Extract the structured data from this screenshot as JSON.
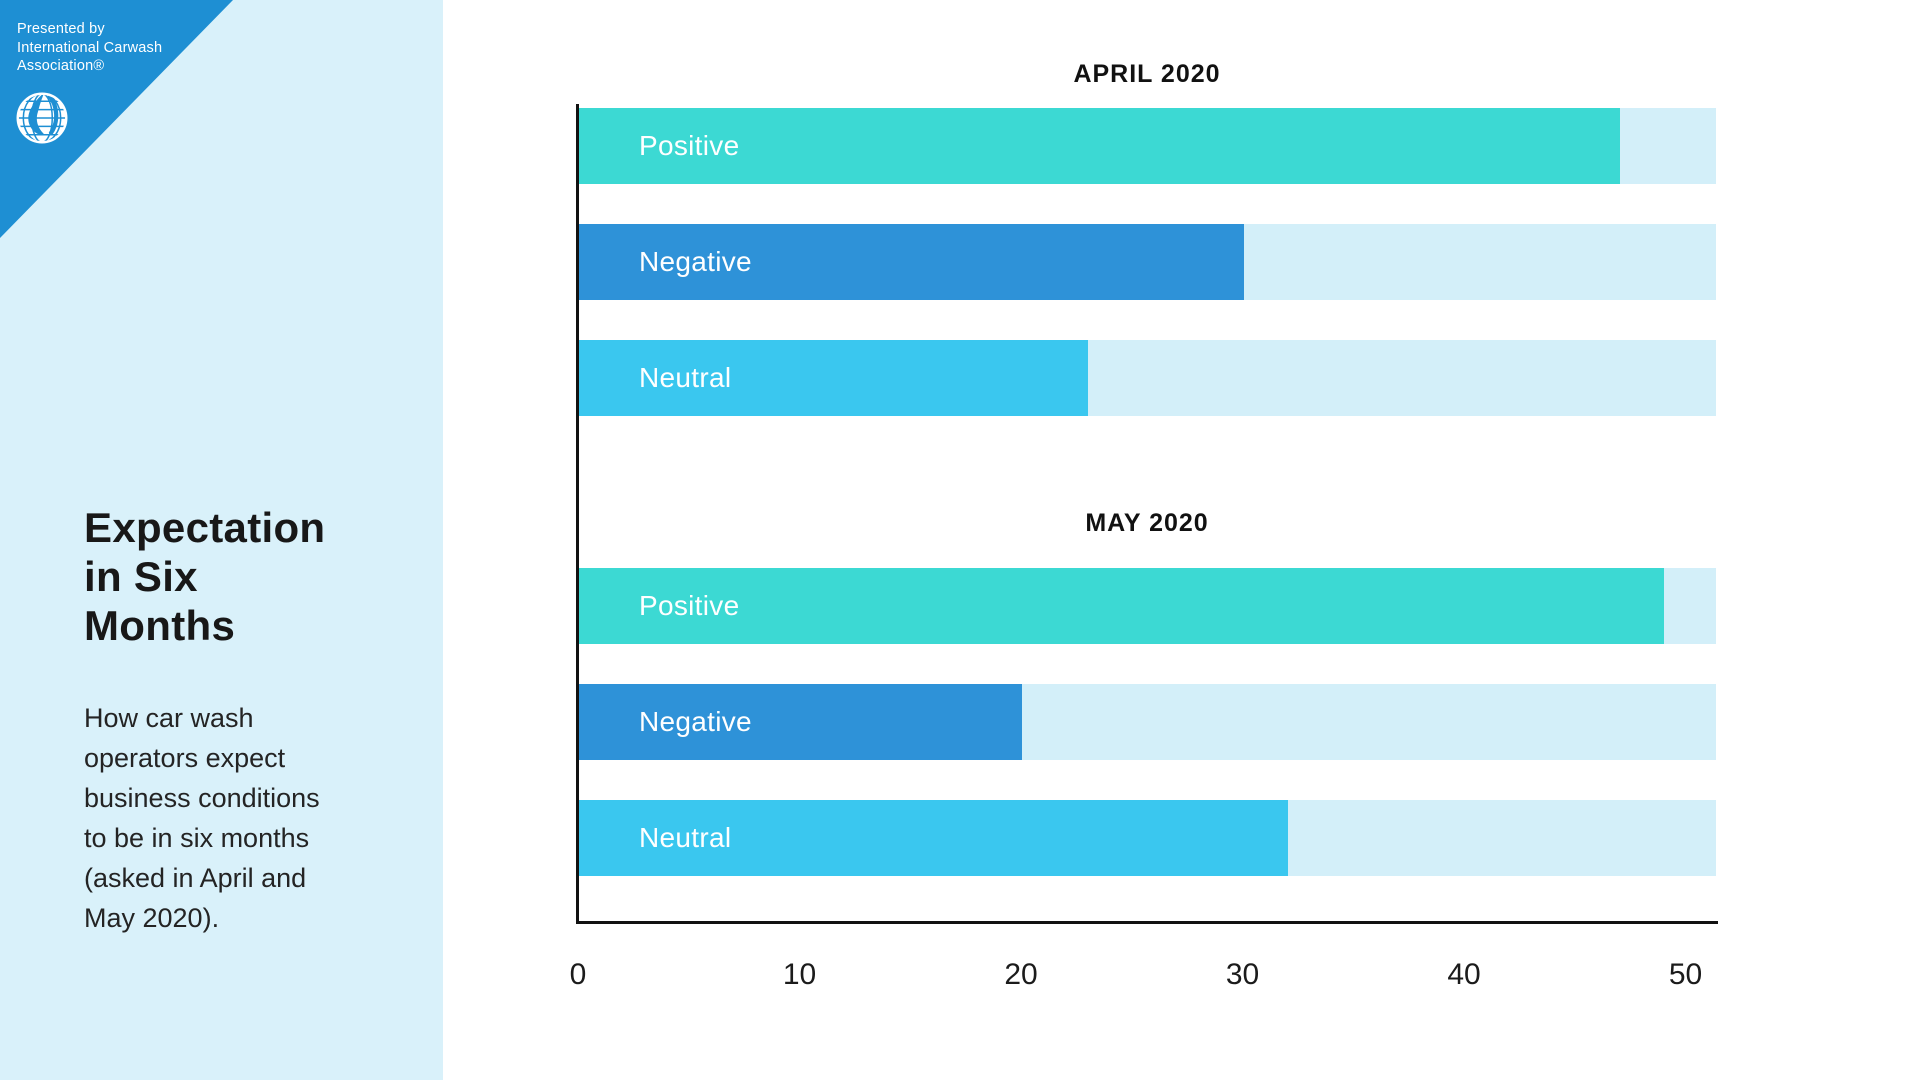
{
  "branding": {
    "presented_by": "Presented by\nInternational Carwash\nAssociation®",
    "logo_icon": "globe-icon",
    "triangle_color": "#1e8fd3",
    "text_color": "#ffffff"
  },
  "sidebar": {
    "title": "Expectation\nin Six\nMonths",
    "description": "How car wash\noperators expect\nbusiness conditions\nto be in six months\n(asked in April and\nMay 2020).",
    "background": "#d9f1fa"
  },
  "chart_data": {
    "type": "bar",
    "orientation": "horizontal",
    "groups": [
      {
        "title": "APRIL 2020",
        "categories": [
          "Positive",
          "Negative",
          "Neutral"
        ],
        "values": [
          47,
          30,
          23
        ]
      },
      {
        "title": "MAY 2020",
        "categories": [
          "Positive",
          "Negative",
          "Neutral"
        ],
        "values": [
          49,
          20,
          32
        ]
      }
    ],
    "category_colors": {
      "Positive": "#3cd9d3",
      "Negative": "#2e92d8",
      "Neutral": "#3ac7ef"
    },
    "track_color": "#d3eff9",
    "xlim": [
      0,
      51.4
    ],
    "x_ticks": [
      0,
      10,
      20,
      30,
      40,
      50
    ],
    "grid": false,
    "legend": "labels inside bars",
    "axis_color": "#121212"
  }
}
